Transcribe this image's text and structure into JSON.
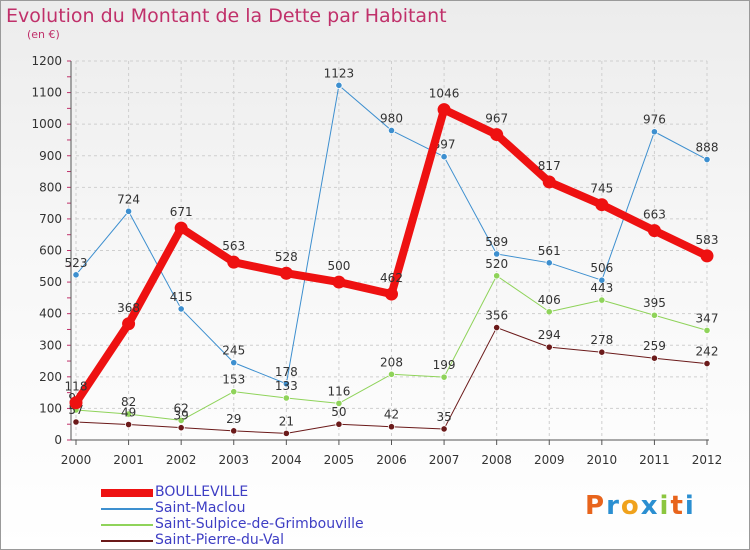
{
  "header": {
    "title": "Evolution du Montant de la Dette par Habitant",
    "subtitle": "(en €)"
  },
  "brand": {
    "letters": [
      "P",
      "r",
      "o",
      "x",
      "i",
      "t",
      "i"
    ],
    "colors": [
      "#e8641c",
      "#2b8fd1",
      "#f0a21c",
      "#2b8fd1",
      "#8cc63f",
      "#e8641c",
      "#2b8fd1"
    ]
  },
  "chart_data": {
    "type": "line",
    "title": "Evolution du Montant de la Dette par Habitant",
    "subtitle": "(en €)",
    "xlabel": "",
    "ylabel": "",
    "x": [
      "2000",
      "2001",
      "2002",
      "2003",
      "2004",
      "2005",
      "2006",
      "2007",
      "2008",
      "2009",
      "2010",
      "2011",
      "2012"
    ],
    "ylim": [
      0,
      1200
    ],
    "yticks": [
      0,
      100,
      200,
      300,
      400,
      500,
      600,
      700,
      800,
      900,
      1000,
      1100,
      1200
    ],
    "grid": true,
    "legend_position": "bottom-left",
    "series": [
      {
        "name": "Saint-Maclou",
        "color": "#3d8fcf",
        "width": 1,
        "values": [
          523,
          724,
          415,
          245,
          178,
          1123,
          980,
          897,
          589,
          561,
          506,
          976,
          888
        ]
      },
      {
        "name": "Saint-Sulpice-de-Grimbouville",
        "color": "#8fd35a",
        "width": 1,
        "values": [
          95,
          82,
          62,
          153,
          133,
          116,
          208,
          199,
          520,
          406,
          443,
          395,
          347
        ]
      },
      {
        "name": "Saint-Pierre-du-Val",
        "color": "#6b1a1a",
        "width": 1,
        "values": [
          57,
          49,
          39,
          29,
          21,
          50,
          42,
          35,
          356,
          294,
          278,
          259,
          242
        ]
      },
      {
        "name": "BOULLEVILLE",
        "color": "#ee1111",
        "width": 8,
        "values": [
          118,
          368,
          671,
          563,
          528,
          500,
          462,
          1046,
          967,
          817,
          745,
          663,
          583
        ]
      }
    ],
    "legend_order": [
      "BOULLEVILLE",
      "Saint-Maclou",
      "Saint-Sulpice-de-Grimbouville",
      "Saint-Pierre-du-Val"
    ]
  }
}
